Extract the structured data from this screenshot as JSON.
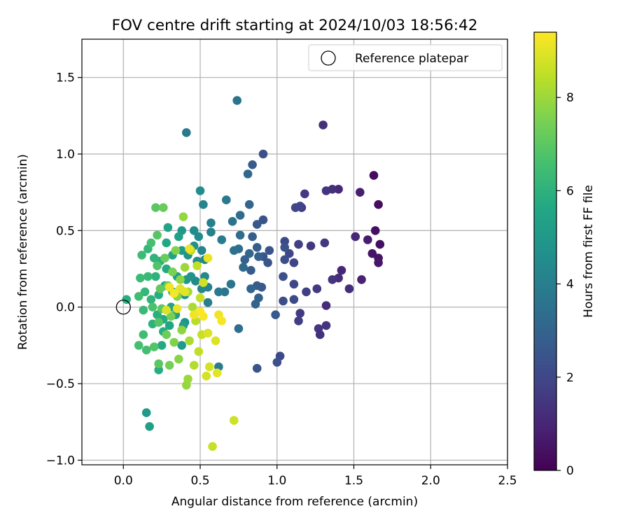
{
  "chart_data": {
    "type": "scatter",
    "title": "FOV centre drift starting at 2024/10/03 18:56:42",
    "xlabel": "Angular distance from reference (arcmin)",
    "ylabel": "Rotation from reference (arcmin)",
    "xlim": [
      -0.27,
      2.5
    ],
    "ylim": [
      -1.03,
      1.75
    ],
    "xticks": [
      0.0,
      0.5,
      1.0,
      1.5,
      2.0,
      2.5
    ],
    "xtick_labels": [
      "0.0",
      "0.5",
      "1.0",
      "1.5",
      "2.0",
      "2.5"
    ],
    "yticks": [
      -1.0,
      -0.5,
      0.0,
      0.5,
      1.0,
      1.5
    ],
    "ytick_labels": [
      "−1.0",
      "−0.5",
      "0.0",
      "0.5",
      "1.0",
      "1.5"
    ],
    "grid": true,
    "legend": {
      "position": "top-right",
      "entries": [
        {
          "label": "Reference platepar",
          "marker": "open-circle"
        }
      ]
    },
    "reference_point": {
      "x": 0.0,
      "y": 0.0
    },
    "colorbar": {
      "label": "Hours from first FF file",
      "colormap": "viridis",
      "min": 0,
      "max": 9.4,
      "ticks": [
        0,
        2,
        4,
        6,
        8
      ],
      "tick_labels": [
        "0",
        "2",
        "4",
        "6",
        "8"
      ]
    },
    "points": [
      [
        1.63,
        0.86,
        0.3
      ],
      [
        1.66,
        0.67,
        0.3
      ],
      [
        1.64,
        0.5,
        0.4
      ],
      [
        1.67,
        0.41,
        0.4
      ],
      [
        1.62,
        0.35,
        0.5
      ],
      [
        1.66,
        0.32,
        0.5
      ],
      [
        1.66,
        0.29,
        0.6
      ],
      [
        1.59,
        0.44,
        0.7
      ],
      [
        1.54,
        0.75,
        0.8
      ],
      [
        1.51,
        0.46,
        1.0
      ],
      [
        1.55,
        0.18,
        0.9
      ],
      [
        1.47,
        0.12,
        1.2
      ],
      [
        1.42,
        0.24,
        1.0
      ],
      [
        1.4,
        0.19,
        1.2
      ],
      [
        1.36,
        0.18,
        1.4
      ],
      [
        1.4,
        0.77,
        1.1
      ],
      [
        1.36,
        0.77,
        1.3
      ],
      [
        1.32,
        0.76,
        1.4
      ],
      [
        1.3,
        1.19,
        1.3
      ],
      [
        1.31,
        0.42,
        1.5
      ],
      [
        1.32,
        0.01,
        1.2
      ],
      [
        1.32,
        -0.12,
        1.4
      ],
      [
        1.27,
        -0.14,
        1.5
      ],
      [
        1.28,
        -0.18,
        1.3
      ],
      [
        1.26,
        0.12,
        1.6
      ],
      [
        1.22,
        0.4,
        1.5
      ],
      [
        1.19,
        0.1,
        1.7
      ],
      [
        1.18,
        0.74,
        1.6
      ],
      [
        1.16,
        0.65,
        1.6
      ],
      [
        1.15,
        0.66,
        1.9
      ],
      [
        1.14,
        0.41,
        1.8
      ],
      [
        1.15,
        -0.04,
        1.6
      ],
      [
        1.14,
        -0.09,
        1.7
      ],
      [
        1.12,
        0.65,
        2.0
      ],
      [
        1.11,
        0.29,
        1.9
      ],
      [
        1.11,
        0.15,
        2.0
      ],
      [
        1.11,
        0.05,
        2.1
      ],
      [
        1.08,
        0.35,
        2.0
      ],
      [
        1.05,
        0.43,
        2.1
      ],
      [
        1.05,
        0.31,
        2.2
      ],
      [
        1.04,
        0.2,
        2.3
      ],
      [
        1.04,
        0.04,
        2.2
      ],
      [
        1.02,
        -0.32,
        2.1
      ],
      [
        1.0,
        -0.36,
        2.3
      ],
      [
        1.05,
        0.39,
        2.4
      ],
      [
        0.99,
        -0.05,
        2.6
      ],
      [
        0.95,
        0.37,
        2.4
      ],
      [
        0.94,
        0.29,
        2.5
      ],
      [
        0.91,
        1.0,
        2.3
      ],
      [
        0.91,
        0.57,
        2.4
      ],
      [
        0.91,
        0.33,
        2.5
      ],
      [
        0.9,
        0.13,
        2.6
      ],
      [
        0.87,
        0.54,
        2.6
      ],
      [
        0.87,
        0.39,
        2.8
      ],
      [
        0.88,
        0.33,
        2.9
      ],
      [
        0.87,
        0.14,
        2.7
      ],
      [
        0.87,
        -0.4,
        2.5
      ],
      [
        0.88,
        0.06,
        2.9
      ],
      [
        0.86,
        0.02,
        3.0
      ],
      [
        0.84,
        0.93,
        2.7
      ],
      [
        0.84,
        0.46,
        2.8
      ],
      [
        0.83,
        0.24,
        2.7
      ],
      [
        0.83,
        0.12,
        3.0
      ],
      [
        0.82,
        0.67,
        3.1
      ],
      [
        0.82,
        0.35,
        3.1
      ],
      [
        0.81,
        0.87,
        3.2
      ],
      [
        0.79,
        0.31,
        2.9
      ],
      [
        0.78,
        0.26,
        3.2
      ],
      [
        0.76,
        0.47,
        3.3
      ],
      [
        0.76,
        0.6,
        3.3
      ],
      [
        0.75,
        0.38,
        3.4
      ],
      [
        0.74,
        1.35,
        3.6
      ],
      [
        0.75,
        -0.14,
        3.4
      ],
      [
        0.72,
        0.37,
        3.5
      ],
      [
        0.71,
        0.56,
        3.6
      ],
      [
        0.7,
        0.15,
        3.7
      ],
      [
        0.67,
        0.7,
        3.8
      ],
      [
        0.66,
        0.1,
        3.7
      ],
      [
        0.64,
        0.44,
        3.9
      ],
      [
        0.62,
        0.1,
        3.8
      ],
      [
        0.62,
        -0.39,
        3.9
      ],
      [
        0.57,
        0.55,
        4.0
      ],
      [
        0.57,
        0.49,
        4.1
      ],
      [
        0.55,
        0.13,
        4.1
      ],
      [
        0.55,
        0.03,
        4.0
      ],
      [
        0.52,
        0.67,
        4.2
      ],
      [
        0.51,
        0.37,
        4.2
      ],
      [
        0.53,
        0.31,
        4.3
      ],
      [
        0.53,
        0.2,
        4.4
      ],
      [
        0.51,
        0.12,
        4.3
      ],
      [
        0.5,
        0.76,
        4.5
      ],
      [
        0.49,
        0.46,
        4.5
      ],
      [
        0.48,
        0.3,
        4.6
      ],
      [
        0.47,
        0.17,
        4.4
      ],
      [
        0.46,
        0.5,
        4.6
      ],
      [
        0.46,
        0.4,
        4.7
      ],
      [
        0.44,
        0.2,
        4.8
      ],
      [
        0.41,
        1.14,
        3.8
      ],
      [
        0.42,
        0.34,
        4.8
      ],
      [
        0.41,
        0.18,
        5.0
      ],
      [
        0.4,
        0.08,
        4.9
      ],
      [
        0.4,
        -0.1,
        4.8
      ],
      [
        0.38,
        0.5,
        5.0
      ],
      [
        0.38,
        0.37,
        5.1
      ],
      [
        0.39,
        -0.12,
        5.2
      ],
      [
        0.38,
        -0.25,
        5.1
      ],
      [
        0.36,
        0.46,
        5.3
      ],
      [
        0.35,
        0.2,
        5.2
      ],
      [
        0.34,
        -0.05,
        5.3
      ],
      [
        0.32,
        0.34,
        5.4
      ],
      [
        0.32,
        0.1,
        5.5
      ],
      [
        0.31,
        0.0,
        5.4
      ],
      [
        0.3,
        -0.12,
        5.5
      ],
      [
        0.29,
        0.52,
        5.5
      ],
      [
        0.28,
        0.42,
        5.6
      ],
      [
        0.28,
        0.25,
        5.7
      ],
      [
        0.27,
        0.14,
        5.6
      ],
      [
        0.26,
        -0.08,
        5.7
      ],
      [
        0.26,
        -0.16,
        5.8
      ],
      [
        0.25,
        -0.25,
        5.7
      ],
      [
        0.23,
        -0.41,
        5.8
      ],
      [
        0.24,
        0.3,
        5.9
      ],
      [
        0.23,
        0.08,
        5.8
      ],
      [
        0.22,
        -0.05,
        5.9
      ],
      [
        0.21,
        0.2,
        6.0
      ],
      [
        0.2,
        0.32,
        6.1
      ],
      [
        0.19,
        -0.11,
        6.0
      ],
      [
        0.18,
        0.05,
        6.1
      ],
      [
        0.17,
        -0.78,
        5.3
      ],
      [
        0.15,
        -0.69,
        5.1
      ],
      [
        0.16,
        0.38,
        6.2
      ],
      [
        0.16,
        0.2,
        6.3
      ],
      [
        0.14,
        0.1,
        6.2
      ],
      [
        0.13,
        -0.02,
        6.3
      ],
      [
        0.12,
        0.34,
        6.4
      ],
      [
        0.11,
        0.19,
        6.4
      ],
      [
        0.1,
        0.07,
        6.5
      ],
      [
        0.1,
        -0.25,
        6.6
      ],
      [
        0.02,
        0.05,
        5.9
      ],
      [
        0.13,
        -0.18,
        6.5
      ],
      [
        0.15,
        -0.28,
        6.6
      ],
      [
        0.18,
        0.42,
        6.6
      ],
      [
        0.19,
        0.0,
        6.7
      ],
      [
        0.2,
        -0.26,
        6.8
      ],
      [
        0.21,
        0.65,
        7.0
      ],
      [
        0.22,
        0.47,
        6.9
      ],
      [
        0.22,
        0.27,
        6.8
      ],
      [
        0.23,
        -0.1,
        6.9
      ],
      [
        0.23,
        -0.37,
        7.0
      ],
      [
        0.24,
        0.12,
        7.1
      ],
      [
        0.25,
        -0.01,
        7.0
      ],
      [
        0.26,
        0.65,
        7.2
      ],
      [
        0.27,
        0.32,
        7.2
      ],
      [
        0.28,
        -0.18,
        7.3
      ],
      [
        0.29,
        0.14,
        7.3
      ],
      [
        0.3,
        -0.38,
        7.4
      ],
      [
        0.31,
        -0.06,
        7.4
      ],
      [
        0.32,
        0.23,
        7.5
      ],
      [
        0.33,
        -0.23,
        7.6
      ],
      [
        0.34,
        0.37,
        7.6
      ],
      [
        0.35,
        0.07,
        7.7
      ],
      [
        0.36,
        -0.34,
        7.7
      ],
      [
        0.37,
        0.18,
        7.8
      ],
      [
        0.38,
        -0.15,
        7.8
      ],
      [
        0.39,
        0.59,
        7.9
      ],
      [
        0.4,
        0.26,
        8.0
      ],
      [
        0.41,
        -0.51,
        7.9
      ],
      [
        0.42,
        -0.47,
        8.0
      ],
      [
        0.42,
        0.1,
        8.1
      ],
      [
        0.43,
        -0.22,
        8.2
      ],
      [
        0.44,
        0.37,
        8.3
      ],
      [
        0.45,
        0.0,
        8.2
      ],
      [
        0.46,
        -0.38,
        8.3
      ],
      [
        0.47,
        -0.09,
        8.4
      ],
      [
        0.48,
        0.27,
        8.5
      ],
      [
        0.49,
        -0.29,
        8.5
      ],
      [
        0.5,
        0.06,
        8.6
      ],
      [
        0.51,
        -0.18,
        8.6
      ],
      [
        0.52,
        0.16,
        8.7
      ],
      [
        0.54,
        -0.45,
        8.8
      ],
      [
        0.55,
        -0.17,
        8.9
      ],
      [
        0.56,
        -0.39,
        8.8
      ],
      [
        0.58,
        -0.91,
        8.6
      ],
      [
        0.6,
        -0.22,
        8.9
      ],
      [
        0.61,
        -0.43,
        9.0
      ],
      [
        0.62,
        -0.05,
        9.2
      ],
      [
        0.64,
        -0.09,
        9.3
      ],
      [
        0.72,
        -0.74,
        8.7
      ],
      [
        0.55,
        0.32,
        9.1
      ],
      [
        0.52,
        -0.06,
        9.3
      ],
      [
        0.5,
        -0.03,
        9.4
      ],
      [
        0.46,
        -0.05,
        9.2
      ],
      [
        0.43,
        0.38,
        9.1
      ],
      [
        0.4,
        0.1,
        9.0
      ],
      [
        0.37,
        0.12,
        9.0
      ],
      [
        0.35,
        -0.01,
        9.1
      ],
      [
        0.33,
        0.09,
        9.3
      ],
      [
        0.3,
        0.13,
        9.2
      ],
      [
        0.28,
        -0.02,
        8.9
      ]
    ]
  }
}
